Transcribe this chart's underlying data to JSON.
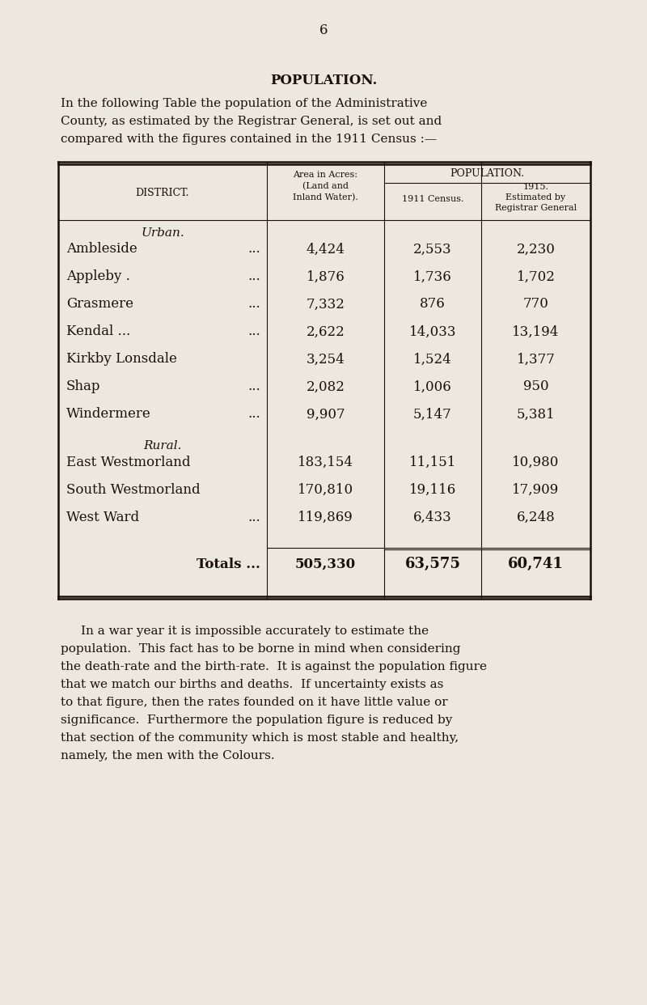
{
  "page_number": "6",
  "section_title": "POPULATION.",
  "intro_text": "In the following Table the population of the Administrative\nCounty, as estimated by the Registrar General, is set out and\ncompared with the figures contained in the 1911 Census :—",
  "table": {
    "pop_header": "POPULATION.",
    "district_header": "DISTRICT.",
    "area_header": "Area in Acres:\n(Land and\nInland Water).",
    "census_header": "1911 Census.",
    "est_header": "1915.\nEstimated by\nRegistrar General",
    "urban_label": "Urban.",
    "rural_label": "Rural.",
    "urban_rows": [
      [
        "Ambleside",
        "...",
        "4,424",
        "2,553",
        "2,230"
      ],
      [
        "Appleby .",
        "...",
        "1,876",
        "1,736",
        "1,702"
      ],
      [
        "Grasmere",
        "...",
        "7,332",
        "876",
        "770"
      ],
      [
        "Kendal ...",
        "...",
        "2,622",
        "14,033",
        "13,194"
      ],
      [
        "Kirkby Lonsdale",
        "",
        "3,254",
        "1,524",
        "1,377"
      ],
      [
        "Shap",
        "...",
        "2,082",
        "1,006",
        "950"
      ],
      [
        "Windermere",
        "...",
        "9,907",
        "5,147",
        "5,381"
      ]
    ],
    "rural_rows": [
      [
        "East Westmorland",
        "",
        "183,154",
        "11,151",
        "10,980"
      ],
      [
        "South Westmorland",
        "",
        "170,810",
        "19,116",
        "17,909"
      ],
      [
        "West Ward",
        "...",
        "119,869",
        "6,433",
        "6,248"
      ]
    ],
    "totals_row": [
      "Totals ...",
      "505,330",
      "63,575",
      "60,741"
    ]
  },
  "footer_text": "In a war year it is impossible accurately to estimate the\npopulation.  This fact has to be borne in mind when considering\nthe death-rate and the birth-rate.  It is against the population figure\nthat we match our births and deaths.  If uncertainty exists as\nto that figure, then the rates founded on it have little value or\nsignificance.  Furthermore the population figure is reduced by\nthat section of the community which is most stable and healthy,\nnamely, the men with the Colours.",
  "bg_color": "#ede8df",
  "text_color": "#1a1008"
}
